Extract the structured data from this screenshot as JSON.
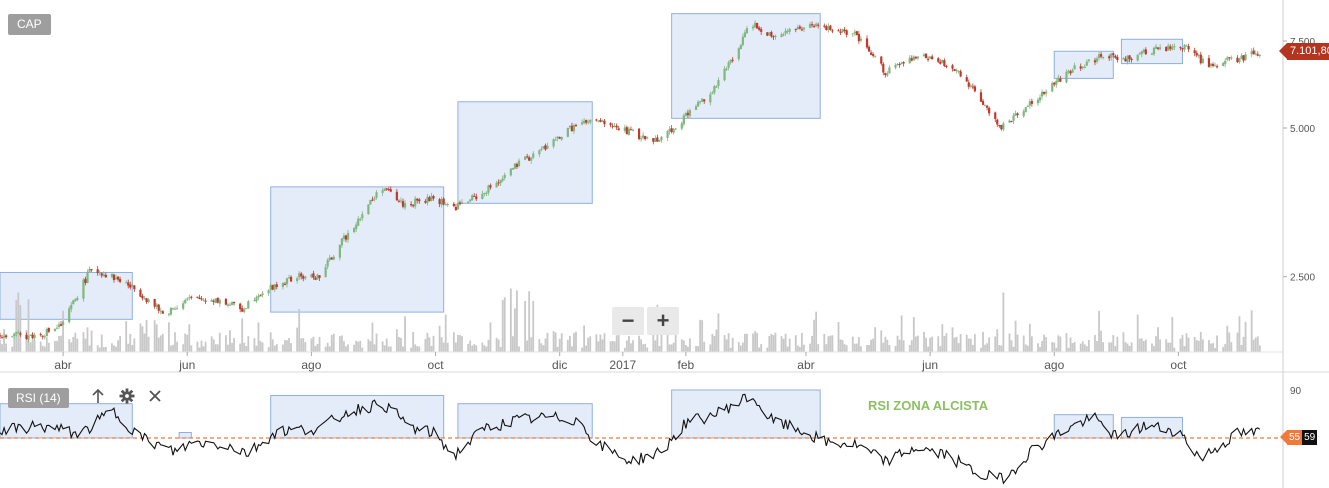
{
  "ticker": "CAP",
  "rsi_label": "RSI (14)",
  "icons": {
    "up": "arrow-up-icon",
    "settings": "gear-icon",
    "close": "close-icon",
    "zoom_out": "minus-icon",
    "zoom_in": "plus-icon"
  },
  "zoom": {
    "out_label": "−",
    "in_label": "+"
  },
  "last_price_label": "7.101,80",
  "rsi_value_label": "55",
  "rsi_value_label2": "59",
  "annotation": "RSI ZONA ALCISTA",
  "colors": {
    "up": "#7fb77e",
    "down": "#c0392b",
    "box_fill": "#dbe6f7",
    "box_stroke": "#8fb0e0",
    "volume": "#c8c8c8",
    "rsi_line": "#111111",
    "rsi_level": "#f07a3a",
    "annotation": "#8cc063"
  },
  "chart_data": [
    {
      "type": "candlestick",
      "title": "CAP",
      "x_tick_labels": [
        "abr",
        "jun",
        "ago",
        "oct",
        "dic",
        "2017",
        "feb",
        "abr",
        "jun",
        "ago",
        "oct"
      ],
      "y_tick_labels": [
        "7.500",
        "5.000",
        "2.500"
      ],
      "y_ticks": [
        7500,
        5000,
        2500
      ],
      "y_scale": "log",
      "ylim": [
        1800,
        8600
      ],
      "last_price": 7101.8,
      "grid": false,
      "anchor_points": [
        [
          "2016-03-01",
          1900
        ],
        [
          "2016-03-20",
          1900
        ],
        [
          "2016-04-01",
          2000
        ],
        [
          "2016-04-15",
          2600
        ],
        [
          "2016-04-30",
          2450
        ],
        [
          "2016-05-10",
          2300
        ],
        [
          "2016-05-20",
          2100
        ],
        [
          "2016-06-01",
          2250
        ],
        [
          "2016-06-15",
          2250
        ],
        [
          "2016-06-28",
          2150
        ],
        [
          "2016-07-05",
          2300
        ],
        [
          "2016-07-25",
          2500
        ],
        [
          "2016-08-05",
          2500
        ],
        [
          "2016-08-20",
          3100
        ],
        [
          "2016-09-05",
          3800
        ],
        [
          "2016-09-15",
          3500
        ],
        [
          "2016-10-01",
          3600
        ],
        [
          "2016-10-10",
          3450
        ],
        [
          "2016-10-25",
          3700
        ],
        [
          "2016-11-10",
          4200
        ],
        [
          "2016-11-25",
          4600
        ],
        [
          "2016-12-10",
          5100
        ],
        [
          "2016-12-20",
          5150
        ],
        [
          "2017-01-05",
          4900
        ],
        [
          "2017-01-15",
          4700
        ],
        [
          "2017-01-25",
          4950
        ],
        [
          "2017-02-05",
          5500
        ],
        [
          "2017-02-15",
          6000
        ],
        [
          "2017-02-25",
          7000
        ],
        [
          "2017-03-05",
          8200
        ],
        [
          "2017-03-15",
          7700
        ],
        [
          "2017-03-30",
          8000
        ],
        [
          "2017-04-10",
          8000
        ],
        [
          "2017-04-25",
          7700
        ],
        [
          "2017-05-10",
          6500
        ],
        [
          "2017-05-20",
          6800
        ],
        [
          "2017-05-30",
          7000
        ],
        [
          "2017-06-15",
          6500
        ],
        [
          "2017-06-25",
          5800
        ],
        [
          "2017-07-05",
          5000
        ],
        [
          "2017-07-15",
          5400
        ],
        [
          "2017-07-25",
          5800
        ],
        [
          "2017-08-10",
          6600
        ],
        [
          "2017-08-25",
          7000
        ],
        [
          "2017-09-05",
          6900
        ],
        [
          "2017-09-20",
          7200
        ],
        [
          "2017-10-05",
          7300
        ],
        [
          "2017-10-15",
          6700
        ],
        [
          "2017-10-30",
          6900
        ],
        [
          "2017-11-10",
          7100
        ]
      ],
      "highlight_boxes": [
        {
          "from": "2016-03-01",
          "to": "2016-05-05",
          "low": 2050,
          "high": 2550
        },
        {
          "from": "2016-07-12",
          "to": "2016-10-05",
          "low": 2120,
          "high": 3800
        },
        {
          "from": "2016-10-12",
          "to": "2016-12-17",
          "low": 3520,
          "high": 5650
        },
        {
          "from": "2017-01-25",
          "to": "2017-04-08",
          "low": 5230,
          "high": 8520
        },
        {
          "from": "2017-08-01",
          "to": "2017-08-30",
          "low": 6300,
          "high": 7150
        },
        {
          "from": "2017-09-03",
          "to": "2017-10-03",
          "low": 6750,
          "high": 7560
        }
      ]
    },
    {
      "type": "bar",
      "title": "Volume",
      "description": "daily volume bars",
      "grid": false
    },
    {
      "type": "line",
      "title": "RSI (14)",
      "y_tick_labels": [
        "90"
      ],
      "ylim": [
        20,
        95
      ],
      "reference_level": 55,
      "last_value": 59,
      "grid": false,
      "anchor_points": [
        [
          "2016-03-01",
          60
        ],
        [
          "2016-03-20",
          64
        ],
        [
          "2016-04-10",
          58
        ],
        [
          "2016-04-25",
          75
        ],
        [
          "2016-05-10",
          55
        ],
        [
          "2016-05-25",
          45
        ],
        [
          "2016-06-05",
          52
        ],
        [
          "2016-06-20",
          50
        ],
        [
          "2016-07-01",
          44
        ],
        [
          "2016-07-15",
          60
        ],
        [
          "2016-08-05",
          62
        ],
        [
          "2016-08-20",
          75
        ],
        [
          "2016-09-05",
          80
        ],
        [
          "2016-09-20",
          62
        ],
        [
          "2016-10-01",
          58
        ],
        [
          "2016-10-10",
          42
        ],
        [
          "2016-10-25",
          62
        ],
        [
          "2016-11-10",
          68
        ],
        [
          "2016-11-25",
          70
        ],
        [
          "2016-12-10",
          68
        ],
        [
          "2016-12-20",
          50
        ],
        [
          "2017-01-05",
          38
        ],
        [
          "2017-01-20",
          45
        ],
        [
          "2017-02-01",
          66
        ],
        [
          "2017-02-15",
          72
        ],
        [
          "2017-03-05",
          86
        ],
        [
          "2017-03-15",
          68
        ],
        [
          "2017-03-30",
          60
        ],
        [
          "2017-04-10",
          52
        ],
        [
          "2017-04-25",
          50
        ],
        [
          "2017-05-10",
          38
        ],
        [
          "2017-05-25",
          48
        ],
        [
          "2017-06-10",
          42
        ],
        [
          "2017-06-25",
          28
        ],
        [
          "2017-07-08",
          25
        ],
        [
          "2017-07-20",
          45
        ],
        [
          "2017-08-05",
          60
        ],
        [
          "2017-08-20",
          70
        ],
        [
          "2017-09-01",
          55
        ],
        [
          "2017-09-15",
          64
        ],
        [
          "2017-10-01",
          60
        ],
        [
          "2017-10-12",
          40
        ],
        [
          "2017-10-30",
          58
        ],
        [
          "2017-11-10",
          59
        ]
      ],
      "highlight_boxes": [
        {
          "from": "2016-03-01",
          "to": "2016-05-05",
          "low": 55,
          "high": 80
        },
        {
          "from": "2016-05-28",
          "to": "2016-06-03",
          "low": 55,
          "high": 59
        },
        {
          "from": "2016-07-12",
          "to": "2016-10-05",
          "low": 55,
          "high": 86
        },
        {
          "from": "2016-10-12",
          "to": "2016-12-17",
          "low": 55,
          "high": 80
        },
        {
          "from": "2017-01-25",
          "to": "2017-04-08",
          "low": 55,
          "high": 90
        },
        {
          "from": "2017-08-01",
          "to": "2017-08-30",
          "low": 55,
          "high": 72
        },
        {
          "from": "2017-09-03",
          "to": "2017-10-03",
          "low": 55,
          "high": 70
        }
      ]
    }
  ]
}
